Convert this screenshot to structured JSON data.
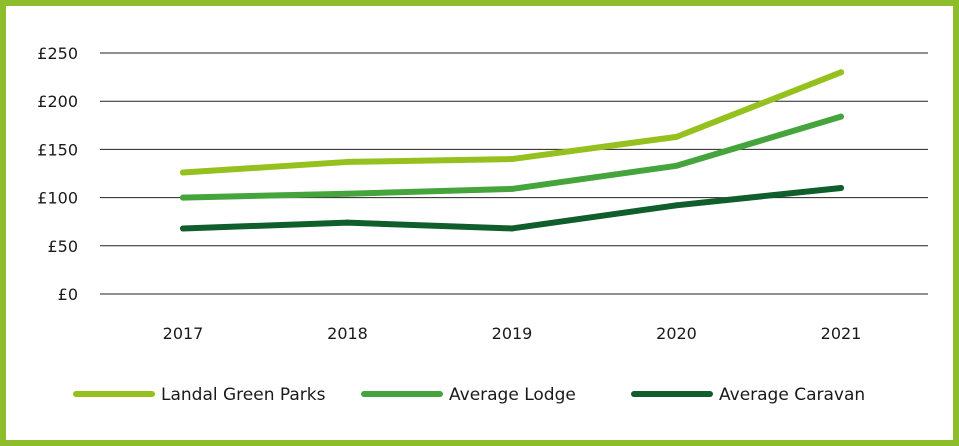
{
  "chart_data": {
    "type": "line",
    "title": "",
    "xlabel": "",
    "ylabel": "",
    "categories": [
      "2017",
      "2018",
      "2019",
      "2020",
      "2021"
    ],
    "ylim": [
      0,
      250
    ],
    "yticks": [
      0,
      50,
      100,
      150,
      200,
      250
    ],
    "ytick_labels": [
      "£0",
      "£50",
      "£100",
      "£150",
      "£200",
      "£250"
    ],
    "grid": true,
    "legend_position": "bottom",
    "series": [
      {
        "name": "Landal Green Parks",
        "color": "#95c11f",
        "values": [
          126,
          137,
          140,
          163,
          230
        ]
      },
      {
        "name": "Average Lodge",
        "color": "#45a53c",
        "values": [
          100,
          104,
          109,
          133,
          184
        ]
      },
      {
        "name": "Average Caravan",
        "color": "#0f5e2c",
        "values": [
          68,
          74,
          68,
          92,
          110
        ]
      }
    ]
  },
  "frame_color": "#8dbd2b",
  "gridline_color": "#222222"
}
